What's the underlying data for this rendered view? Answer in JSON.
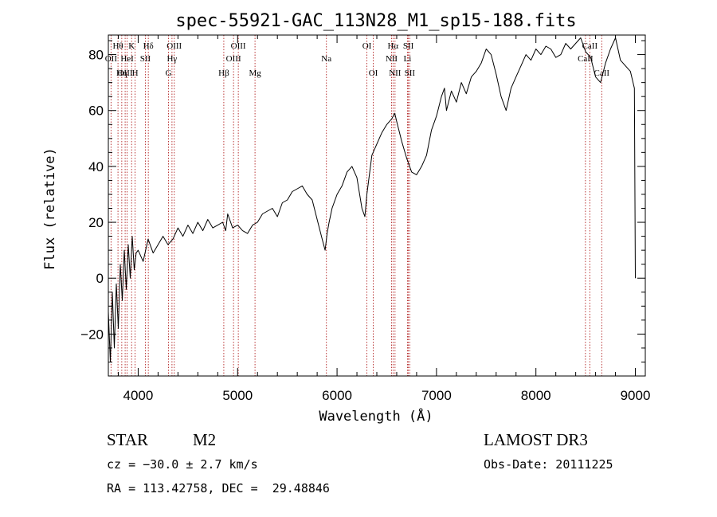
{
  "chart_data": {
    "type": "line",
    "title": "spec-55921-GAC_113N28_M1_sp15-188.fits",
    "xlabel": "Wavelength (Å)",
    "ylabel": "Flux (relative)",
    "xlim": [
      3700,
      9100
    ],
    "ylim": [
      -35,
      87
    ],
    "x_ticks": [
      4000,
      5000,
      6000,
      7000,
      8000,
      9000
    ],
    "x_tick_labels": [
      "4000",
      "5000",
      "6000",
      "7000",
      "8000",
      "9000"
    ],
    "y_ticks": [
      -20,
      0,
      20,
      40,
      60,
      80
    ],
    "y_tick_labels": [
      "−20",
      "0",
      "20",
      "40",
      "60",
      "80"
    ],
    "series": [
      {
        "name": "flux",
        "x": [
          3700,
          3720,
          3740,
          3760,
          3780,
          3800,
          3820,
          3840,
          3860,
          3880,
          3900,
          3920,
          3940,
          3960,
          3980,
          4000,
          4050,
          4100,
          4150,
          4200,
          4250,
          4300,
          4350,
          4400,
          4450,
          4500,
          4550,
          4600,
          4650,
          4700,
          4750,
          4800,
          4850,
          4880,
          4900,
          4950,
          5000,
          5050,
          5100,
          5150,
          5200,
          5250,
          5300,
          5350,
          5400,
          5450,
          5500,
          5550,
          5600,
          5650,
          5700,
          5750,
          5800,
          5850,
          5880,
          5900,
          5920,
          5950,
          6000,
          6050,
          6100,
          6150,
          6200,
          6250,
          6280,
          6300,
          6350,
          6400,
          6450,
          6500,
          6550,
          6580,
          6600,
          6650,
          6700,
          6750,
          6800,
          6850,
          6900,
          6950,
          7000,
          7050,
          7080,
          7100,
          7150,
          7200,
          7250,
          7300,
          7350,
          7400,
          7450,
          7500,
          7550,
          7600,
          7650,
          7700,
          7750,
          7800,
          7850,
          7900,
          7950,
          8000,
          8050,
          8100,
          8150,
          8200,
          8250,
          8300,
          8350,
          8400,
          8450,
          8500,
          8550,
          8600,
          8650,
          8700,
          8750,
          8800,
          8850,
          8900,
          8950,
          8990,
          9000
        ],
        "y": [
          -12,
          -30,
          -5,
          -25,
          -2,
          -18,
          5,
          -8,
          10,
          -4,
          12,
          0,
          15,
          3,
          9,
          10,
          6,
          14,
          9,
          12,
          15,
          12,
          14,
          18,
          15,
          19,
          16,
          20,
          17,
          21,
          18,
          19,
          20,
          17,
          23,
          18,
          19,
          17,
          16,
          19,
          20,
          23,
          24,
          25,
          22,
          27,
          28,
          31,
          32,
          33,
          30,
          28,
          21,
          14,
          10,
          16,
          20,
          25,
          30,
          33,
          38,
          40,
          36,
          25,
          22,
          30,
          44,
          48,
          52,
          55,
          57,
          59,
          56,
          49,
          43,
          38,
          37,
          40,
          44,
          53,
          58,
          65,
          68,
          60,
          67,
          63,
          70,
          66,
          72,
          74,
          77,
          82,
          80,
          73,
          65,
          60,
          68,
          72,
          76,
          80,
          78,
          82,
          80,
          83,
          82,
          79,
          80,
          84,
          82,
          84,
          86,
          81,
          79,
          72,
          70,
          77,
          82,
          86,
          78,
          76,
          74,
          68,
          0
        ]
      }
    ],
    "spectral_lines": [
      {
        "label": "Hθ",
        "x": 3797,
        "row": 1
      },
      {
        "label": "OII",
        "x": 3727,
        "row": 2
      },
      {
        "label": "OIII",
        "x": 3869,
        "row": 3
      },
      {
        "label": "K",
        "x": 3934,
        "row": 1
      },
      {
        "label": "H",
        "x": 3969,
        "row": 3
      },
      {
        "label": "HeI",
        "x": 3889,
        "row": 2
      },
      {
        "label": "SII",
        "x": 4072,
        "row": 2
      },
      {
        "label": "Hη",
        "x": 3835,
        "row": 3
      },
      {
        "label": "Hδ",
        "x": 4102,
        "row": 1
      },
      {
        "label": "OIII",
        "x": 4363,
        "row": 1
      },
      {
        "label": "Hγ",
        "x": 4340,
        "row": 2
      },
      {
        "label": "G",
        "x": 4305,
        "row": 3
      },
      {
        "label": "OIII",
        "x": 5007,
        "row": 1
      },
      {
        "label": "OIII",
        "x": 4959,
        "row": 2
      },
      {
        "label": "Hβ",
        "x": 4861,
        "row": 3
      },
      {
        "label": "Mg",
        "x": 5175,
        "row": 3
      },
      {
        "label": "Na",
        "x": 5893,
        "row": 2
      },
      {
        "label": "OI",
        "x": 6300,
        "row": 1
      },
      {
        "label": "OI",
        "x": 6364,
        "row": 3
      },
      {
        "label": "Hα",
        "x": 6563,
        "row": 1
      },
      {
        "label": "SII",
        "x": 6717,
        "row": 1
      },
      {
        "label": "NII",
        "x": 6548,
        "row": 2
      },
      {
        "label": "Li",
        "x": 6708,
        "row": 2
      },
      {
        "label": "NII",
        "x": 6583,
        "row": 3
      },
      {
        "label": "SII",
        "x": 6731,
        "row": 3
      },
      {
        "label": "CaII",
        "x": 8542,
        "row": 1
      },
      {
        "label": "CaII",
        "x": 8498,
        "row": 2
      },
      {
        "label": "CaII",
        "x": 8662,
        "row": 3
      }
    ]
  },
  "info": {
    "object_class": "STAR",
    "subclass": "M2",
    "survey": "LAMOST DR3",
    "redshift_line": "cz = −30.0 ± 2.7 km/s",
    "obs_date": "Obs-Date: 20111225",
    "coords": "RA = 113.42758, DEC =  29.48846"
  },
  "colors": {
    "axes": "#000000",
    "spectrum": "#000000",
    "line_markers": "#b22222",
    "background": "#ffffff"
  }
}
